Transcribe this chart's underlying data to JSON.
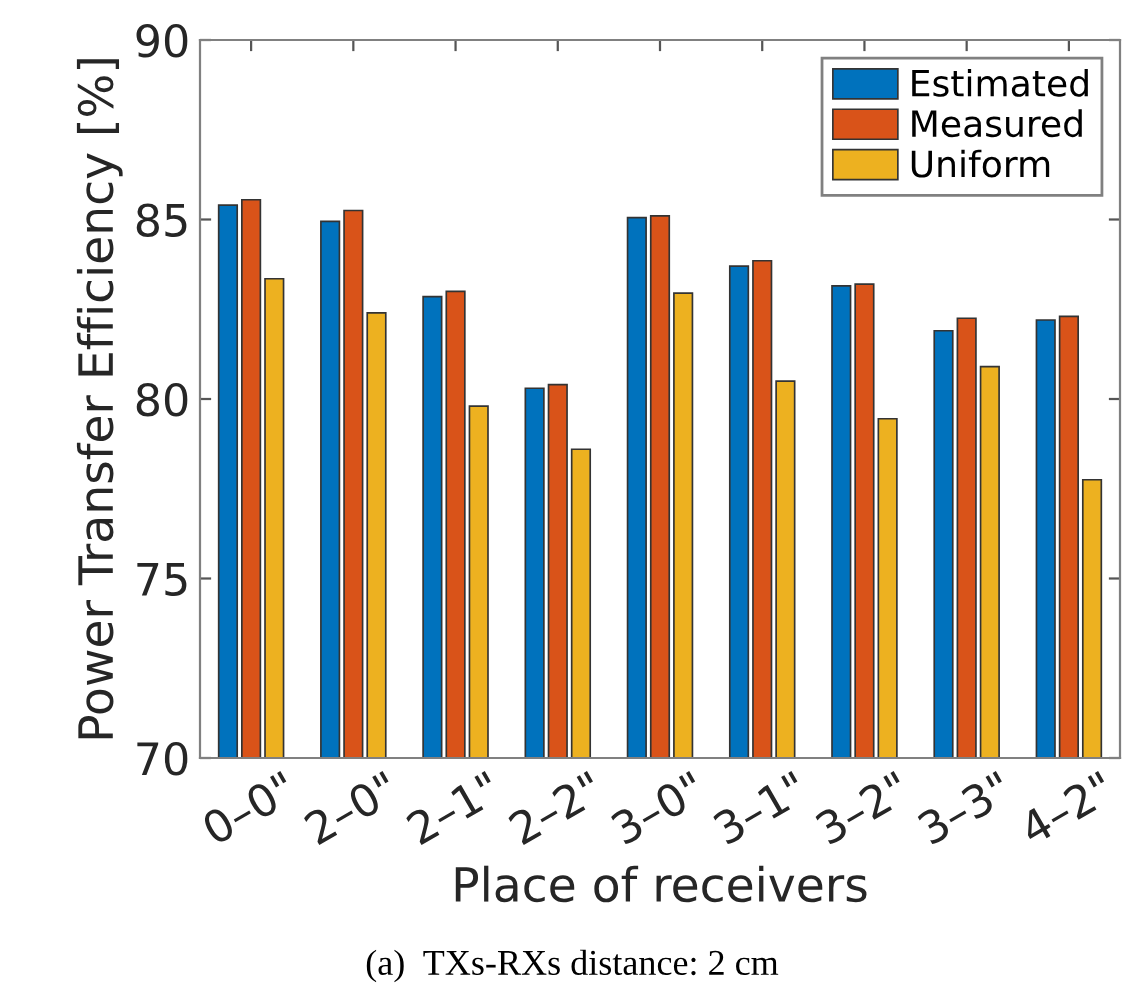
{
  "chart_data": {
    "type": "bar",
    "xlabel": "Place of receivers",
    "ylabel": "Power Transfer Efficiency [%]",
    "categories": [
      "0–0\"",
      "2–0\"",
      "2–1\"",
      "2–2\"",
      "3–0\"",
      "3–1\"",
      "3–2\"",
      "3–3\"",
      "4–2\""
    ],
    "series": [
      {
        "name": "Estimated",
        "color": "#0072bd",
        "values": [
          85.4,
          84.95,
          82.85,
          80.3,
          85.05,
          83.7,
          83.15,
          81.9,
          82.2
        ]
      },
      {
        "name": "Measured",
        "color": "#d95319",
        "values": [
          85.55,
          85.25,
          83.0,
          80.4,
          85.1,
          83.85,
          83.2,
          82.25,
          82.3
        ]
      },
      {
        "name": "Uniform",
        "color": "#edb120",
        "values": [
          83.35,
          82.4,
          79.8,
          78.6,
          82.95,
          80.5,
          79.45,
          80.9,
          77.75
        ]
      }
    ],
    "ylim": [
      70,
      90
    ],
    "yticks": [
      70,
      75,
      80,
      85,
      90
    ],
    "legend": "top right",
    "grid": false,
    "annotations": [
      "(a)  TXs-RXs distance: 2 cm"
    ]
  }
}
